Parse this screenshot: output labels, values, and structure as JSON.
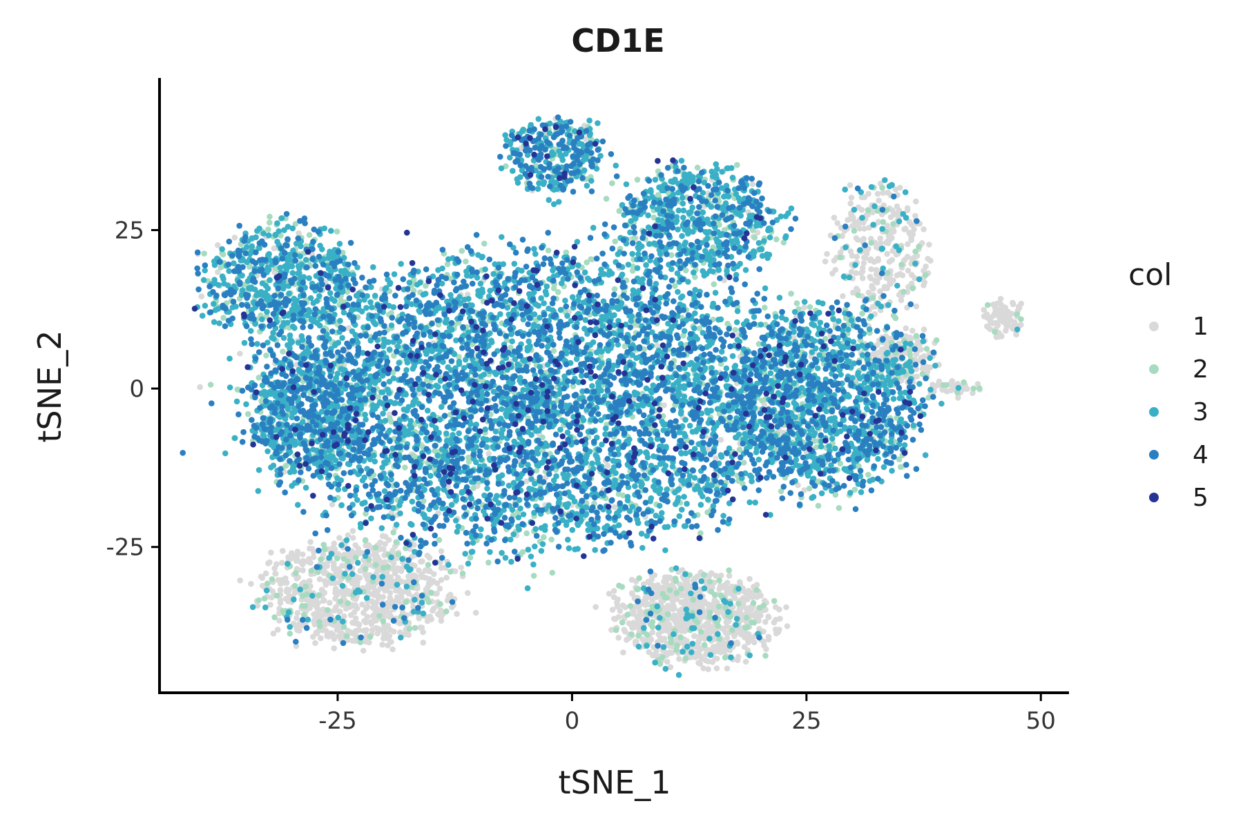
{
  "chart_data": {
    "type": "scatter",
    "title": "CD1E",
    "xlabel": "tSNE_1",
    "ylabel": "tSNE_2",
    "xlim": [
      -44,
      53
    ],
    "ylim": [
      -48,
      49
    ],
    "x_ticks": [
      -25,
      0,
      25,
      50
    ],
    "y_ticks": [
      -25,
      0,
      25
    ],
    "x_tick_labels": [
      "-25",
      "0",
      "25",
      "50"
    ],
    "y_tick_labels": [
      "-25",
      "0",
      "25"
    ],
    "grid": false,
    "legend": {
      "title": "col",
      "position": "right",
      "entries": [
        {
          "label": "1",
          "color": "#d9d9d9"
        },
        {
          "label": "2",
          "color": "#a6dbc0"
        },
        {
          "label": "3",
          "color": "#3ab0c6"
        },
        {
          "label": "4",
          "color": "#2a7fc1"
        },
        {
          "label": "5",
          "color": "#253494"
        }
      ]
    },
    "clusters": [
      {
        "name": "main-body",
        "cx": -4,
        "cy": -2,
        "rx": 27,
        "ry": 22,
        "n": 5200,
        "mix": [
          0.03,
          0.12,
          0.47,
          0.33,
          0.05
        ]
      },
      {
        "name": "upper-left-lobe",
        "cx": -31,
        "cy": 17,
        "rx": 8,
        "ry": 9,
        "n": 700,
        "mix": [
          0.04,
          0.2,
          0.47,
          0.27,
          0.02
        ]
      },
      {
        "name": "left-lobe",
        "cx": -28,
        "cy": -4,
        "rx": 6,
        "ry": 10,
        "n": 600,
        "mix": [
          0.04,
          0.16,
          0.46,
          0.32,
          0.02
        ]
      },
      {
        "name": "top-lobe",
        "cx": -2,
        "cy": 37,
        "rx": 5,
        "ry": 6,
        "n": 320,
        "mix": [
          0.03,
          0.14,
          0.44,
          0.36,
          0.03
        ]
      },
      {
        "name": "upper-right-lobe",
        "cx": 13,
        "cy": 26,
        "rx": 9,
        "ry": 9,
        "n": 700,
        "mix": [
          0.04,
          0.2,
          0.48,
          0.26,
          0.02
        ]
      },
      {
        "name": "right-lobe",
        "cx": 27,
        "cy": -2,
        "rx": 10,
        "ry": 14,
        "n": 1400,
        "mix": [
          0.05,
          0.16,
          0.46,
          0.3,
          0.03
        ]
      },
      {
        "name": "lower-left-island",
        "cx": -23,
        "cy": -32,
        "rx": 10,
        "ry": 8,
        "n": 900,
        "mix": [
          0.82,
          0.1,
          0.06,
          0.02,
          0.0
        ]
      },
      {
        "name": "lower-center-island",
        "cx": 13,
        "cy": -36,
        "rx": 8,
        "ry": 7,
        "n": 900,
        "mix": [
          0.82,
          0.12,
          0.05,
          0.01,
          0.0
        ]
      },
      {
        "name": "upper-right-gray-island",
        "cx": 33,
        "cy": 22,
        "rx": 5,
        "ry": 10,
        "n": 320,
        "mix": [
          0.82,
          0.06,
          0.1,
          0.02,
          0.0
        ]
      },
      {
        "name": "far-right-small-island",
        "cx": 46,
        "cy": 11,
        "rx": 2,
        "ry": 3,
        "n": 80,
        "mix": [
          0.9,
          0.08,
          0.02,
          0.0,
          0.0
        ]
      },
      {
        "name": "right-gray-patch",
        "cx": 35,
        "cy": 5,
        "rx": 4,
        "ry": 4,
        "n": 160,
        "mix": [
          0.78,
          0.1,
          0.1,
          0.02,
          0.0
        ]
      },
      {
        "name": "right-tiny-island",
        "cx": 41,
        "cy": 0,
        "rx": 3,
        "ry": 1.2,
        "n": 40,
        "mix": [
          0.85,
          0.12,
          0.03,
          0.0,
          0.0
        ]
      }
    ]
  }
}
